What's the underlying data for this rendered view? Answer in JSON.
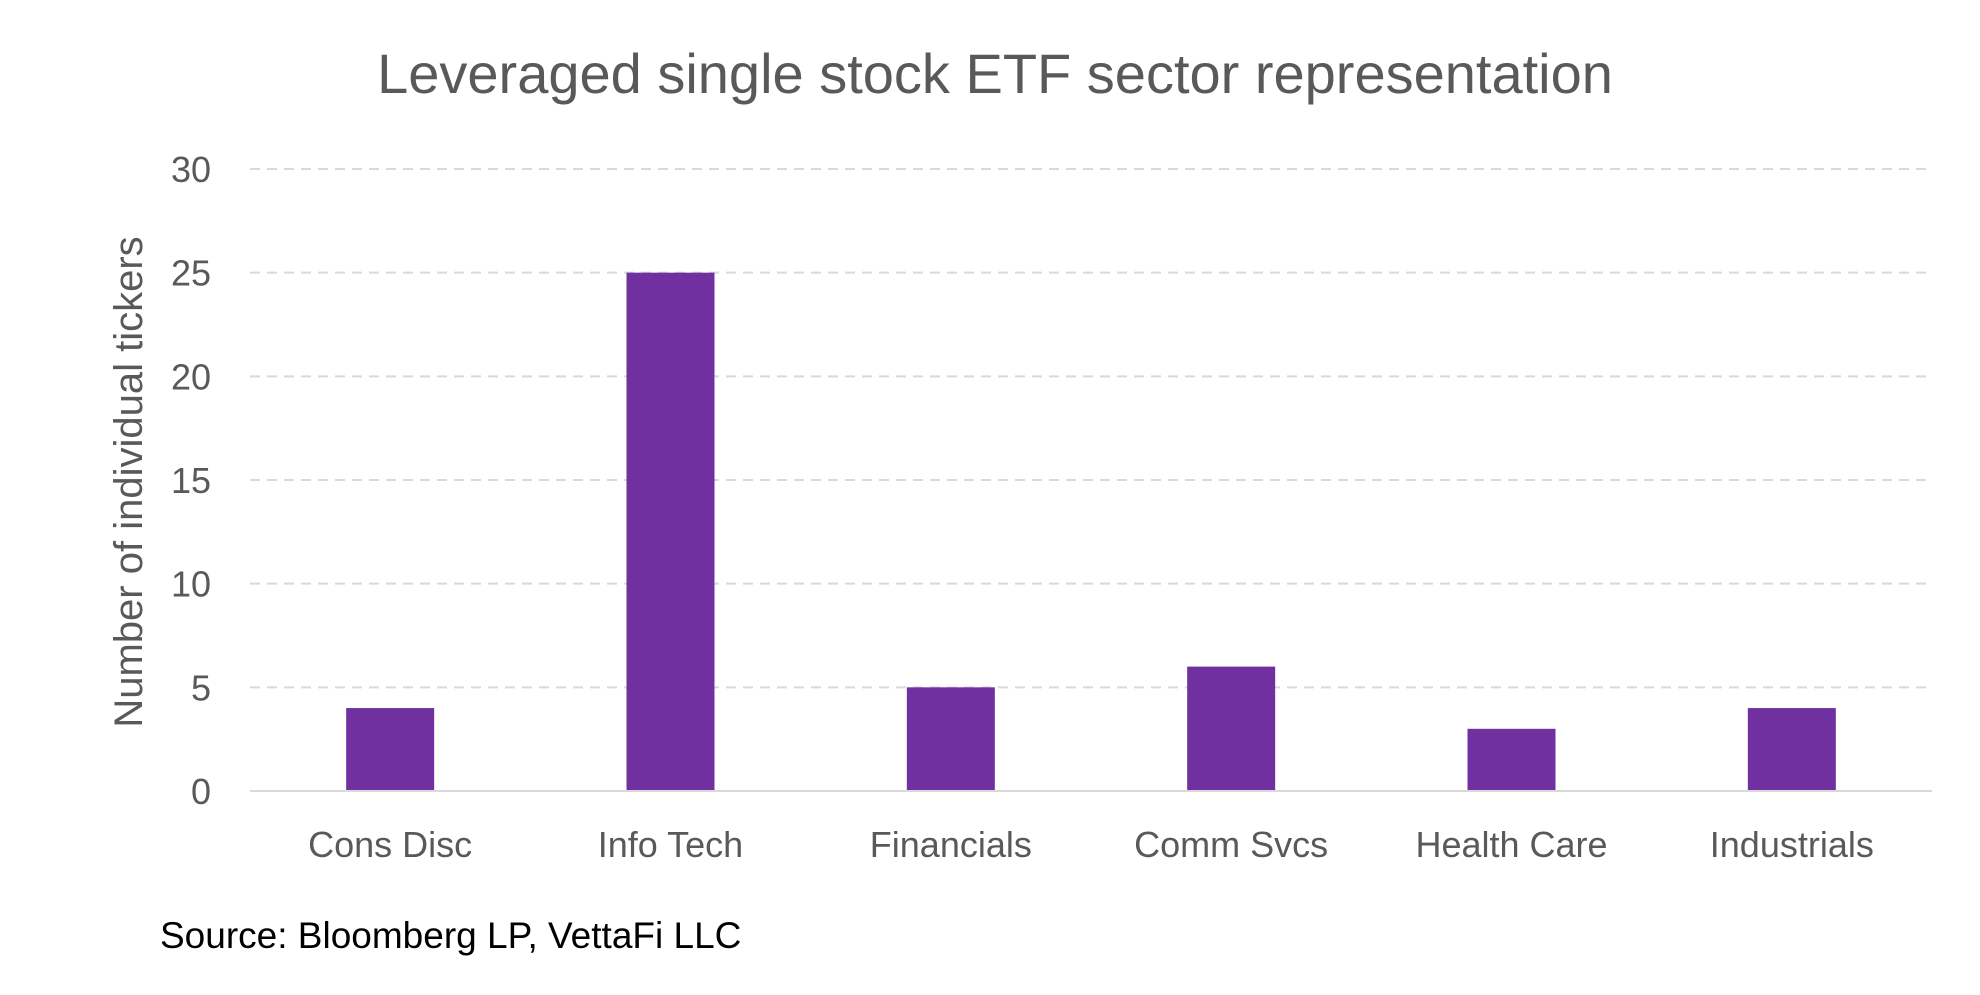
{
  "chart_data": {
    "type": "bar",
    "title": "Leveraged single stock ETF sector representation",
    "xlabel": "",
    "ylabel": "Number of individual tickers",
    "categories": [
      "Cons Disc",
      "Info Tech",
      "Financials",
      "Comm Svcs",
      "Health Care",
      "Industrials"
    ],
    "series": [
      {
        "values": [
          4,
          25,
          5,
          6,
          3,
          4
        ]
      }
    ],
    "ylim": [
      0,
      30
    ],
    "yticks": [
      "0",
      "5",
      "10",
      "15",
      "20",
      "25",
      "30"
    ],
    "grid": true,
    "legend": "none",
    "source": "Source: Bloomberg LP, VettaFi LLC",
    "colors": {
      "bar": "#7030A0",
      "text": "#595959",
      "grid": "#D9D9D9",
      "axis": "#D9D9D9",
      "source_text": "#000000"
    }
  }
}
